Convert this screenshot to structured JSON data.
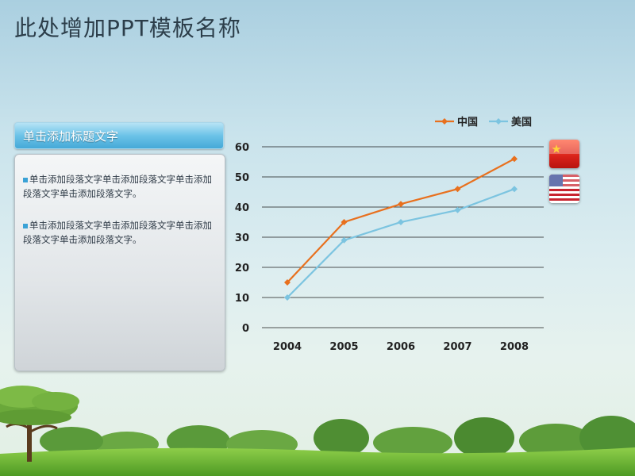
{
  "title": "此处增加PPT模板名称",
  "side": {
    "header": "单击添加标题文字",
    "paragraphs": [
      "单击添加段落文字单击添加段落文字单击添加段落文字单击添加段落文字。",
      "单击添加段落文字单击添加段落文字单击添加段落文字单击添加段落文字。"
    ]
  },
  "colors": {
    "china": "#e8701e",
    "usa": "#7cc4e0",
    "grid": "#1a1a1a"
  },
  "icons": [
    "china-flag-icon",
    "usa-flag-icon"
  ],
  "chart_data": {
    "type": "line",
    "x": [
      "2004",
      "2005",
      "2006",
      "2007",
      "2008"
    ],
    "series": [
      {
        "name": "中国",
        "values": [
          15,
          35,
          41,
          46,
          56
        ],
        "color": "#e8701e"
      },
      {
        "name": "美国",
        "values": [
          10,
          29,
          35,
          39,
          46
        ],
        "color": "#7cc4e0"
      }
    ],
    "yticks": [
      "0",
      "10",
      "20",
      "30",
      "40",
      "50",
      "60"
    ],
    "ylim": [
      0,
      60
    ],
    "grid": true,
    "legend": "top-right",
    "marker": "diamond"
  }
}
